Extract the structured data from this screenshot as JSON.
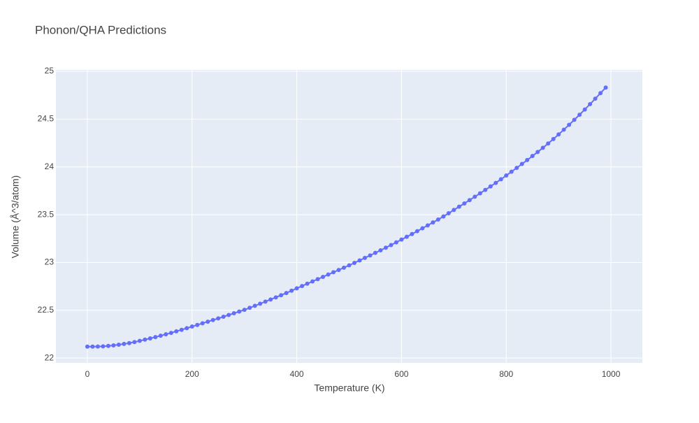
{
  "chart_data": {
    "type": "line",
    "title": "Phonon/QHA Predictions",
    "x_label": "Temperature (K)",
    "y_label": "Volume (Å^3/atom)",
    "x": [
      0,
      10,
      20,
      30,
      40,
      50,
      60,
      70,
      80,
      90,
      100,
      110,
      120,
      130,
      140,
      150,
      160,
      170,
      180,
      190,
      200,
      210,
      220,
      230,
      240,
      250,
      260,
      270,
      280,
      290,
      300,
      310,
      320,
      330,
      340,
      350,
      360,
      370,
      380,
      390,
      400,
      410,
      420,
      430,
      440,
      450,
      460,
      470,
      480,
      490,
      500,
      510,
      520,
      530,
      540,
      550,
      560,
      570,
      580,
      590,
      600,
      610,
      620,
      630,
      640,
      650,
      660,
      670,
      680,
      690,
      700,
      710,
      720,
      730,
      740,
      750,
      760,
      770,
      780,
      790,
      800,
      810,
      820,
      830,
      840,
      850,
      860,
      870,
      880,
      890,
      900,
      910,
      920,
      930,
      940,
      950,
      960,
      970,
      980,
      990
    ],
    "series": [
      {
        "color": "#636efa",
        "values": [
          22.12,
          22.12,
          22.121,
          22.123,
          22.127,
          22.133,
          22.14,
          22.148,
          22.157,
          22.168,
          22.18,
          22.193,
          22.206,
          22.22,
          22.234,
          22.249,
          22.264,
          22.28,
          22.296,
          22.313,
          22.33,
          22.347,
          22.364,
          22.381,
          22.398,
          22.415,
          22.433,
          22.451,
          22.469,
          22.487,
          22.505,
          22.526,
          22.547,
          22.569,
          22.591,
          22.613,
          22.635,
          22.658,
          22.681,
          22.705,
          22.73,
          22.754,
          22.778,
          22.802,
          22.826,
          22.85,
          22.874,
          22.898,
          22.922,
          22.946,
          22.97,
          22.996,
          23.022,
          23.048,
          23.074,
          23.101,
          23.128,
          23.155,
          23.183,
          23.211,
          23.24,
          23.269,
          23.298,
          23.328,
          23.358,
          23.388,
          23.419,
          23.45,
          23.482,
          23.515,
          23.55,
          23.584,
          23.618,
          23.653,
          23.688,
          23.724,
          23.76,
          23.796,
          23.833,
          23.871,
          23.91,
          23.95,
          23.99,
          24.031,
          24.072,
          24.114,
          24.156,
          24.2,
          24.245,
          24.292,
          24.34,
          24.39,
          24.441,
          24.493,
          24.546,
          24.601,
          24.657,
          24.714,
          24.772,
          24.83
        ]
      }
    ],
    "xlim": [
      -60,
      1060
    ],
    "xticks": [
      0,
      200,
      400,
      600,
      800,
      1000
    ],
    "ylim": [
      21.95,
      25.015
    ],
    "yticks": [
      22,
      22.5,
      23,
      23.5,
      24,
      24.5,
      25
    ],
    "grid": true
  }
}
